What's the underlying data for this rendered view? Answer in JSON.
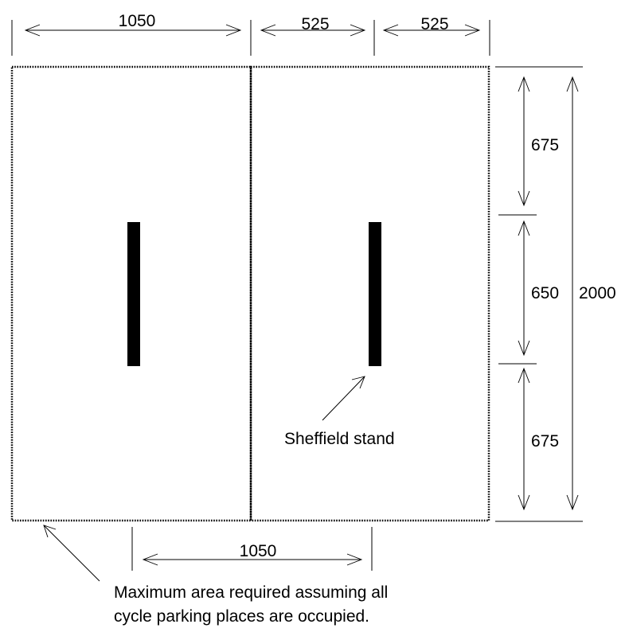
{
  "dimensions": {
    "top_left_width": "1050",
    "top_mid_width": "525",
    "top_right_width": "525",
    "right_upper": "675",
    "right_middle": "650",
    "right_lower": "675",
    "right_total": "2000",
    "bottom_spacing": "1050"
  },
  "annotations": {
    "stand_label": "Sheffield stand",
    "area_note_line1": "Maximum area required assuming all",
    "area_note_line2": "cycle parking places are occupied."
  }
}
